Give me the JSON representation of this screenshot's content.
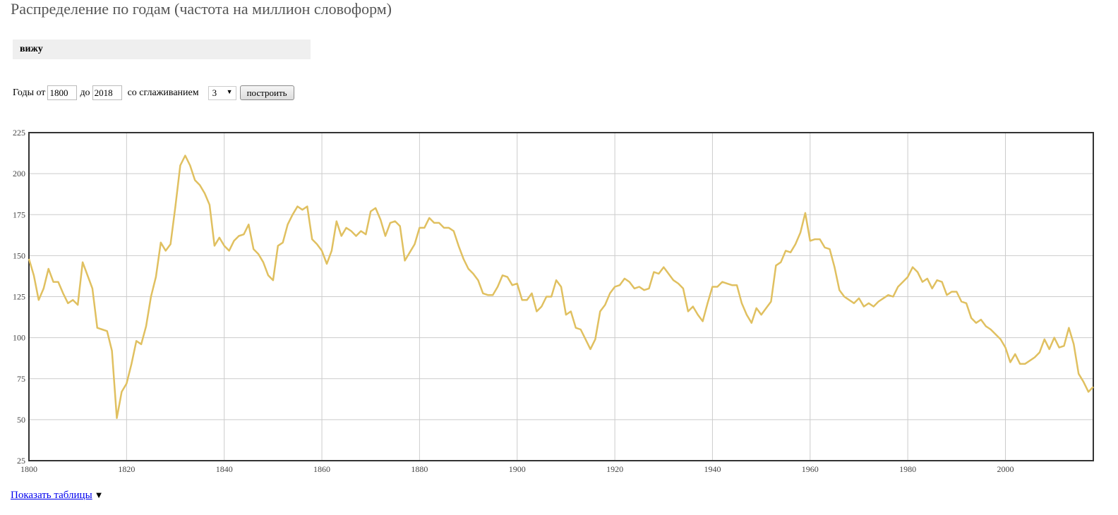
{
  "header": {
    "title": "Распределение по годам (частота на миллион словоформ)"
  },
  "query": {
    "word": "вижу"
  },
  "controls": {
    "years_label": "Годы от",
    "from_year": "1800",
    "to_label": "до",
    "to_year": "2018",
    "smoothing_label": "со сглаживанием",
    "smoothing_value": "3",
    "build_button": "построить"
  },
  "footer": {
    "show_tables_link": "Показать таблицы",
    "toggle_glyph": "▼"
  },
  "colors": {
    "line": "#e0c060",
    "grid": "#cccccc",
    "frame": "#333333",
    "tick_text": "#444444"
  },
  "chart_data": {
    "type": "line",
    "title": "",
    "xlabel": "",
    "ylabel": "",
    "xlim": [
      1800,
      2018
    ],
    "ylim": [
      25,
      225
    ],
    "x_ticks": [
      1800,
      1820,
      1840,
      1860,
      1880,
      1900,
      1920,
      1940,
      1960,
      1980,
      2000
    ],
    "y_ticks": [
      25,
      50,
      75,
      100,
      125,
      150,
      175,
      200,
      225
    ],
    "grid": true,
    "series": [
      {
        "values": [
          [
            1800,
            148
          ],
          [
            1801,
            138
          ],
          [
            1802,
            123
          ],
          [
            1803,
            130
          ],
          [
            1804,
            142
          ],
          [
            1805,
            134
          ],
          [
            1806,
            134
          ],
          [
            1807,
            127
          ],
          [
            1808,
            121
          ],
          [
            1809,
            123
          ],
          [
            1810,
            120
          ],
          [
            1811,
            146
          ],
          [
            1812,
            138
          ],
          [
            1813,
            130
          ],
          [
            1814,
            106
          ],
          [
            1815,
            105
          ],
          [
            1816,
            104
          ],
          [
            1817,
            92
          ],
          [
            1818,
            51
          ],
          [
            1819,
            67
          ],
          [
            1820,
            72
          ],
          [
            1821,
            84
          ],
          [
            1822,
            98
          ],
          [
            1823,
            96
          ],
          [
            1824,
            107
          ],
          [
            1825,
            125
          ],
          [
            1826,
            137
          ],
          [
            1827,
            158
          ],
          [
            1828,
            153
          ],
          [
            1829,
            157
          ],
          [
            1830,
            180
          ],
          [
            1831,
            205
          ],
          [
            1832,
            211
          ],
          [
            1833,
            205
          ],
          [
            1834,
            196
          ],
          [
            1835,
            193
          ],
          [
            1836,
            188
          ],
          [
            1837,
            181
          ],
          [
            1838,
            156
          ],
          [
            1839,
            161
          ],
          [
            1840,
            156
          ],
          [
            1841,
            153
          ],
          [
            1842,
            159
          ],
          [
            1843,
            162
          ],
          [
            1844,
            163
          ],
          [
            1845,
            169
          ],
          [
            1846,
            154
          ],
          [
            1847,
            151
          ],
          [
            1848,
            146
          ],
          [
            1849,
            138
          ],
          [
            1850,
            135
          ],
          [
            1851,
            156
          ],
          [
            1852,
            158
          ],
          [
            1853,
            169
          ],
          [
            1854,
            175
          ],
          [
            1855,
            180
          ],
          [
            1856,
            178
          ],
          [
            1857,
            180
          ],
          [
            1858,
            160
          ],
          [
            1859,
            157
          ],
          [
            1860,
            153
          ],
          [
            1861,
            145
          ],
          [
            1862,
            153
          ],
          [
            1863,
            171
          ],
          [
            1864,
            162
          ],
          [
            1865,
            167
          ],
          [
            1866,
            165
          ],
          [
            1867,
            162
          ],
          [
            1868,
            165
          ],
          [
            1869,
            163
          ],
          [
            1870,
            177
          ],
          [
            1871,
            179
          ],
          [
            1872,
            172
          ],
          [
            1873,
            162
          ],
          [
            1874,
            170
          ],
          [
            1875,
            171
          ],
          [
            1876,
            168
          ],
          [
            1877,
            147
          ],
          [
            1878,
            152
          ],
          [
            1879,
            157
          ],
          [
            1880,
            167
          ],
          [
            1881,
            167
          ],
          [
            1882,
            173
          ],
          [
            1883,
            170
          ],
          [
            1884,
            170
          ],
          [
            1885,
            167
          ],
          [
            1886,
            167
          ],
          [
            1887,
            165
          ],
          [
            1888,
            156
          ],
          [
            1889,
            148
          ],
          [
            1890,
            142
          ],
          [
            1891,
            139
          ],
          [
            1892,
            135
          ],
          [
            1893,
            127
          ],
          [
            1894,
            126
          ],
          [
            1895,
            126
          ],
          [
            1896,
            131
          ],
          [
            1897,
            138
          ],
          [
            1898,
            137
          ],
          [
            1899,
            132
          ],
          [
            1900,
            133
          ],
          [
            1901,
            123
          ],
          [
            1902,
            123
          ],
          [
            1903,
            127
          ],
          [
            1904,
            116
          ],
          [
            1905,
            119
          ],
          [
            1906,
            125
          ],
          [
            1907,
            125
          ],
          [
            1908,
            135
          ],
          [
            1909,
            131
          ],
          [
            1910,
            114
          ],
          [
            1911,
            116
          ],
          [
            1912,
            106
          ],
          [
            1913,
            105
          ],
          [
            1914,
            99
          ],
          [
            1915,
            93
          ],
          [
            1916,
            99
          ],
          [
            1917,
            116
          ],
          [
            1918,
            120
          ],
          [
            1919,
            127
          ],
          [
            1920,
            131
          ],
          [
            1921,
            132
          ],
          [
            1922,
            136
          ],
          [
            1923,
            134
          ],
          [
            1924,
            130
          ],
          [
            1925,
            131
          ],
          [
            1926,
            129
          ],
          [
            1927,
            130
          ],
          [
            1928,
            140
          ],
          [
            1929,
            139
          ],
          [
            1930,
            143
          ],
          [
            1931,
            139
          ],
          [
            1932,
            135
          ],
          [
            1933,
            133
          ],
          [
            1934,
            130
          ],
          [
            1935,
            116
          ],
          [
            1936,
            119
          ],
          [
            1937,
            114
          ],
          [
            1938,
            110
          ],
          [
            1939,
            121
          ],
          [
            1940,
            131
          ],
          [
            1941,
            131
          ],
          [
            1942,
            134
          ],
          [
            1943,
            133
          ],
          [
            1944,
            132
          ],
          [
            1945,
            132
          ],
          [
            1946,
            121
          ],
          [
            1947,
            114
          ],
          [
            1948,
            109
          ],
          [
            1949,
            118
          ],
          [
            1950,
            114
          ],
          [
            1951,
            118
          ],
          [
            1952,
            122
          ],
          [
            1953,
            144
          ],
          [
            1954,
            146
          ],
          [
            1955,
            153
          ],
          [
            1956,
            152
          ],
          [
            1957,
            157
          ],
          [
            1958,
            164
          ],
          [
            1959,
            176
          ],
          [
            1960,
            159
          ],
          [
            1961,
            160
          ],
          [
            1962,
            160
          ],
          [
            1963,
            155
          ],
          [
            1964,
            154
          ],
          [
            1965,
            143
          ],
          [
            1966,
            129
          ],
          [
            1967,
            125
          ],
          [
            1968,
            123
          ],
          [
            1969,
            121
          ],
          [
            1970,
            124
          ],
          [
            1971,
            119
          ],
          [
            1972,
            121
          ],
          [
            1973,
            119
          ],
          [
            1974,
            122
          ],
          [
            1975,
            124
          ],
          [
            1976,
            126
          ],
          [
            1977,
            125
          ],
          [
            1978,
            131
          ],
          [
            1979,
            134
          ],
          [
            1980,
            137
          ],
          [
            1981,
            143
          ],
          [
            1982,
            140
          ],
          [
            1983,
            134
          ],
          [
            1984,
            136
          ],
          [
            1985,
            130
          ],
          [
            1986,
            135
          ],
          [
            1987,
            134
          ],
          [
            1988,
            126
          ],
          [
            1989,
            128
          ],
          [
            1990,
            128
          ],
          [
            1991,
            122
          ],
          [
            1992,
            121
          ],
          [
            1993,
            112
          ],
          [
            1994,
            109
          ],
          [
            1995,
            111
          ],
          [
            1996,
            107
          ],
          [
            1997,
            105
          ],
          [
            1998,
            102
          ],
          [
            1999,
            99
          ],
          [
            2000,
            94
          ],
          [
            2001,
            85
          ],
          [
            2002,
            90
          ],
          [
            2003,
            84
          ],
          [
            2004,
            84
          ],
          [
            2005,
            86
          ],
          [
            2006,
            88
          ],
          [
            2007,
            91
          ],
          [
            2008,
            99
          ],
          [
            2009,
            93
          ],
          [
            2010,
            100
          ],
          [
            2011,
            94
          ],
          [
            2012,
            95
          ],
          [
            2013,
            106
          ],
          [
            2014,
            96
          ],
          [
            2015,
            78
          ],
          [
            2016,
            73
          ],
          [
            2017,
            67
          ],
          [
            2018,
            70
          ]
        ]
      }
    ]
  }
}
